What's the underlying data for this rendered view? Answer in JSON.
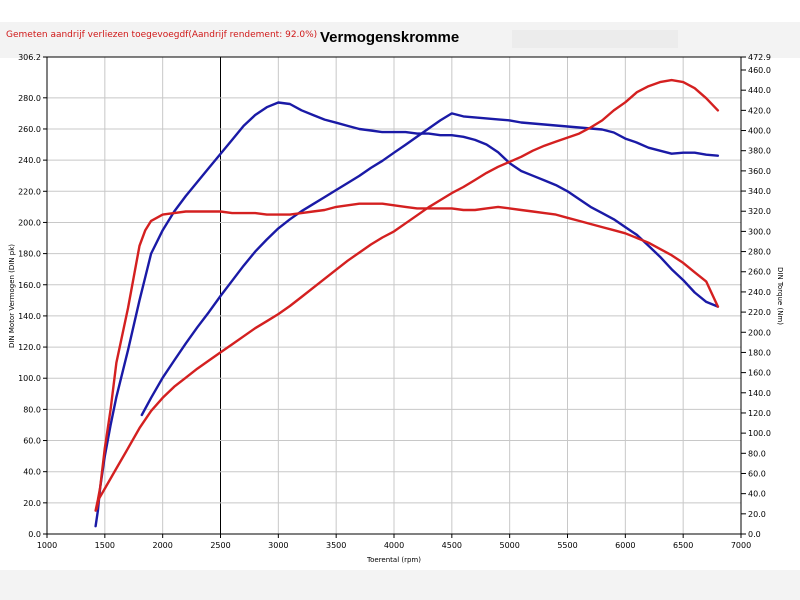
{
  "header": {
    "note": "Gemeten aandrijf verliezen toegevoegdf(Aandrijf rendement: 92.0%)",
    "title": "Vermogenskromme"
  },
  "chart_data": {
    "type": "line",
    "title": "Vermogenskromme",
    "xlabel": "Toerental (rpm)",
    "ylabel_left": "DIN Motor Vermogen (DIN pk)",
    "ylabel_right": "DIN Torque (Nm)",
    "xlim": [
      1000,
      7000
    ],
    "ylim_left": [
      0,
      306.2
    ],
    "ylim_right": [
      0,
      472.9
    ],
    "x_ticks": [
      "1000",
      "1500",
      "2000",
      "2500",
      "3000",
      "3500",
      "4000",
      "4500",
      "5000",
      "5500",
      "6000",
      "6500",
      "7000"
    ],
    "y_left_ticks": [
      "0.0",
      "20.0",
      "40.0",
      "60.0",
      "80.0",
      "100.0",
      "120.0",
      "140.0",
      "160.0",
      "180.0",
      "200.0",
      "220.0",
      "240.0",
      "260.0",
      "280.0",
      "306.2"
    ],
    "y_right_ticks": [
      "0.0",
      "20.0",
      "40.0",
      "60.0",
      "80.0",
      "100.0",
      "120.0",
      "140.0",
      "160.0",
      "180.0",
      "200.0",
      "220.0",
      "240.0",
      "260.0",
      "280.0",
      "300.0",
      "320.0",
      "340.0",
      "360.0",
      "380.0",
      "400.0",
      "420.0",
      "440.0",
      "460.0",
      "472.9"
    ],
    "grid": true,
    "colors": {
      "blue": "#1a1aa6",
      "red": "#d42020"
    },
    "series": [
      {
        "axis": "left",
        "color": "#1a1aa6",
        "x": [
          1420,
          1440,
          1460,
          1500,
          1550,
          1600,
          1700,
          1800,
          1850,
          1900,
          2000,
          2100,
          2200,
          2300,
          2400,
          2500,
          2600,
          2700,
          2800,
          2900,
          3000,
          3100,
          3200,
          3300,
          3400,
          3500,
          3600,
          3700,
          3800,
          3900,
          4000,
          4100,
          4200,
          4300,
          4400,
          4500,
          4600,
          4700,
          4800,
          4900,
          5000,
          5100,
          5200,
          5300,
          5400,
          5500,
          5600,
          5700,
          5800,
          5900,
          6000,
          6100,
          6200,
          6300,
          6400,
          6500,
          6600,
          6700,
          6800
        ],
        "y": [
          5,
          15,
          30,
          50,
          70,
          88,
          118,
          150,
          165,
          180,
          195,
          207,
          217,
          226,
          235,
          244,
          253,
          262,
          269,
          274,
          277,
          276,
          272,
          269,
          266,
          264,
          262,
          260,
          259,
          258,
          258,
          258,
          257,
          257,
          256,
          256,
          255,
          253,
          250,
          245,
          238,
          233,
          230,
          227,
          224,
          220,
          215,
          210,
          206,
          202,
          197,
          192,
          185,
          178,
          170,
          163,
          155,
          149,
          146
        ]
      },
      {
        "axis": "right",
        "color": "#1a1aa6",
        "x": [
          1820,
          1900,
          2000,
          2100,
          2200,
          2300,
          2400,
          2500,
          2600,
          2700,
          2800,
          2900,
          3000,
          3100,
          3200,
          3300,
          3400,
          3500,
          3600,
          3700,
          3800,
          3900,
          4000,
          4100,
          4200,
          4300,
          4400,
          4500,
          4600,
          4700,
          4800,
          4900,
          5000,
          5100,
          5200,
          5300,
          5400,
          5500,
          5600,
          5700,
          5800,
          5900,
          6000,
          6100,
          6200,
          6300,
          6400,
          6500,
          6600,
          6700,
          6800
        ],
        "y": [
          118,
          135,
          155,
          172,
          189,
          205,
          220,
          236,
          251,
          266,
          280,
          292,
          303,
          312,
          320,
          327,
          334,
          341,
          348,
          355,
          363,
          370,
          378,
          386,
          394,
          402,
          410,
          417,
          414,
          413,
          412,
          411,
          410,
          408,
          407,
          406,
          405,
          404,
          403,
          402,
          401,
          398,
          392,
          388,
          383,
          380,
          377,
          378,
          378,
          376,
          375
        ]
      },
      {
        "axis": "left",
        "color": "#d42020",
        "x": [
          1420,
          1440,
          1460,
          1500,
          1550,
          1600,
          1700,
          1800,
          1850,
          1900,
          2000,
          2100,
          2200,
          2300,
          2400,
          2500,
          2600,
          2700,
          2800,
          2900,
          3000,
          3100,
          3200,
          3300,
          3400,
          3500,
          3600,
          3700,
          3800,
          3900,
          4000,
          4100,
          4200,
          4300,
          4400,
          4500,
          4600,
          4700,
          4800,
          4900,
          5000,
          5100,
          5200,
          5300,
          5400,
          5500,
          5600,
          5700,
          5800,
          5900,
          6000,
          6100,
          6200,
          6300,
          6400,
          6500,
          6600,
          6700,
          6800
        ],
        "y": [
          15,
          22,
          30,
          55,
          80,
          110,
          145,
          185,
          195,
          201,
          205,
          206,
          207,
          207,
          207,
          207,
          206,
          206,
          206,
          205,
          205,
          205,
          206,
          207,
          208,
          210,
          211,
          212,
          212,
          212,
          211,
          210,
          209,
          209,
          209,
          209,
          208,
          208,
          209,
          210,
          209,
          208,
          207,
          206,
          205,
          203,
          201,
          199,
          197,
          195,
          193,
          190,
          187,
          183,
          179,
          174,
          168,
          162,
          146
        ]
      },
      {
        "axis": "right",
        "color": "#d42020",
        "x": [
          1430,
          1450,
          1500,
          1600,
          1700,
          1800,
          1900,
          2000,
          2100,
          2200,
          2300,
          2400,
          2500,
          2600,
          2700,
          2800,
          2900,
          3000,
          3100,
          3200,
          3300,
          3400,
          3500,
          3600,
          3700,
          3800,
          3900,
          4000,
          4100,
          4200,
          4300,
          4400,
          4500,
          4600,
          4700,
          4800,
          4900,
          5000,
          5100,
          5200,
          5300,
          5400,
          5500,
          5600,
          5700,
          5800,
          5900,
          6000,
          6100,
          6200,
          6300,
          6400,
          6500,
          6600,
          6700,
          6800
        ],
        "y": [
          25,
          35,
          45,
          65,
          85,
          105,
          122,
          135,
          146,
          155,
          164,
          172,
          180,
          188,
          196,
          204,
          211,
          218,
          226,
          235,
          244,
          253,
          262,
          271,
          279,
          287,
          294,
          300,
          308,
          316,
          324,
          331,
          338,
          344,
          351,
          358,
          364,
          369,
          374,
          380,
          385,
          389,
          393,
          397,
          403,
          410,
          420,
          428,
          438,
          444,
          448,
          450,
          448,
          442,
          432,
          420
        ]
      }
    ]
  }
}
